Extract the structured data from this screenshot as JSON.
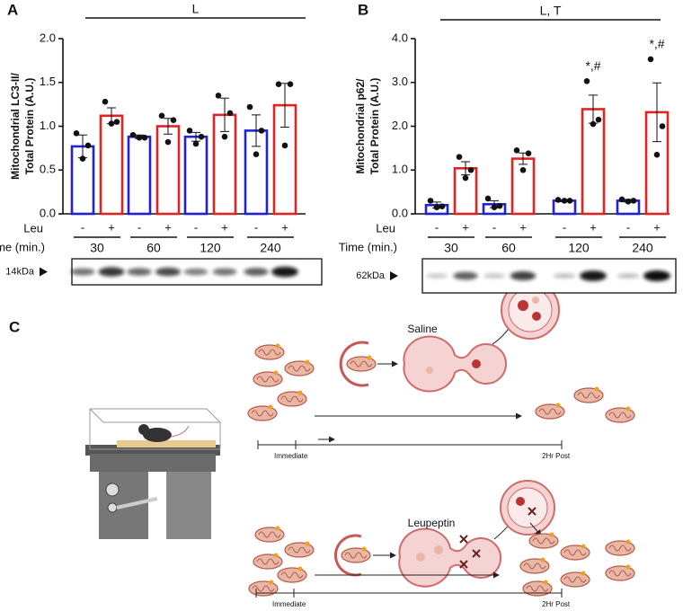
{
  "chart_data": [
    {
      "type": "bar",
      "panel": "A",
      "ylabel": [
        "Mitochondrial LC3-II/",
        "Total Protein (A.U.)"
      ],
      "ylim": [
        0,
        2
      ],
      "yticks": [
        {
          "value": 0,
          "label": "0.0"
        },
        {
          "value": 0.5,
          "label": "0.5"
        },
        {
          "value": 1,
          "label": "1.0"
        },
        {
          "value": 1.5,
          "label": "1.5"
        },
        {
          "value": 2,
          "label": "2.0"
        }
      ],
      "row_labels": {
        "treatment": "Leu",
        "time": "Time (min.)"
      },
      "groups": [
        "30",
        "60",
        "120",
        "240"
      ],
      "series": [
        {
          "name": "-",
          "color": "#2222d4",
          "values": [
            0.77,
            0.88,
            0.88,
            0.95
          ],
          "errors": [
            0.13,
            0.02,
            0.05,
            0.18
          ],
          "points": [
            [
              0.92,
              0.78,
              0.63
            ],
            [
              0.9,
              0.87,
              0.87
            ],
            [
              0.95,
              0.88,
              0.8
            ],
            [
              1.22,
              0.95,
              0.68
            ]
          ]
        },
        {
          "name": "+",
          "color": "#e02424",
          "values": [
            1.12,
            1.0,
            1.13,
            1.24
          ],
          "errors": [
            0.09,
            0.09,
            0.19,
            0.25
          ],
          "points": [
            [
              1.28,
              1.05,
              1.03
            ],
            [
              1.12,
              1.07,
              0.82
            ],
            [
              1.35,
              1.15,
              0.88
            ],
            [
              1.48,
              1.48,
              0.78
            ]
          ]
        }
      ],
      "significance": "L",
      "blot_label": "14kDa"
    },
    {
      "type": "bar",
      "panel": "B",
      "ylabel": [
        "Mitochondrial p62/",
        "Total Protein (A.U.)"
      ],
      "ylim": [
        0,
        4
      ],
      "yticks": [
        {
          "value": 0,
          "label": "0.0"
        },
        {
          "value": 1,
          "label": "1.0"
        },
        {
          "value": 2,
          "label": "2.0"
        },
        {
          "value": 3,
          "label": "3.0"
        },
        {
          "value": 4,
          "label": "4.0"
        }
      ],
      "row_labels": {
        "treatment": "Leu",
        "time": "Time (min.)"
      },
      "groups": [
        "30",
        "60",
        "120",
        "240"
      ],
      "series": [
        {
          "name": "-",
          "color": "#2222d4",
          "values": [
            0.2,
            0.22,
            0.3,
            0.3
          ],
          "errors": [
            0.07,
            0.08,
            0.02,
            0.03
          ],
          "points": [
            [
              0.3,
              0.17,
              0.15
            ],
            [
              0.35,
              0.18,
              0.15
            ],
            [
              0.32,
              0.3,
              0.3
            ],
            [
              0.33,
              0.3,
              0.28
            ]
          ]
        },
        {
          "name": "+",
          "color": "#e02424",
          "values": [
            1.04,
            1.26,
            2.39,
            2.32
          ],
          "errors": [
            0.15,
            0.13,
            0.32,
            0.67
          ],
          "points": [
            [
              1.3,
              1.0,
              0.82
            ],
            [
              1.45,
              1.38,
              1.0
            ],
            [
              3.03,
              2.15,
              2.05
            ],
            [
              3.53,
              2.0,
              1.35
            ]
          ]
        }
      ],
      "significance": "L, T",
      "annotations": [
        "*,#",
        "*,#"
      ],
      "blot_label": "62kDa"
    }
  ],
  "panel_c": {
    "label": "C",
    "top": {
      "treatment": "Saline",
      "start": "Immediate",
      "end": "2Hr Post"
    },
    "bottom": {
      "treatment": "Leupeptin",
      "start": "Immediate",
      "end": "2Hr Post"
    }
  }
}
